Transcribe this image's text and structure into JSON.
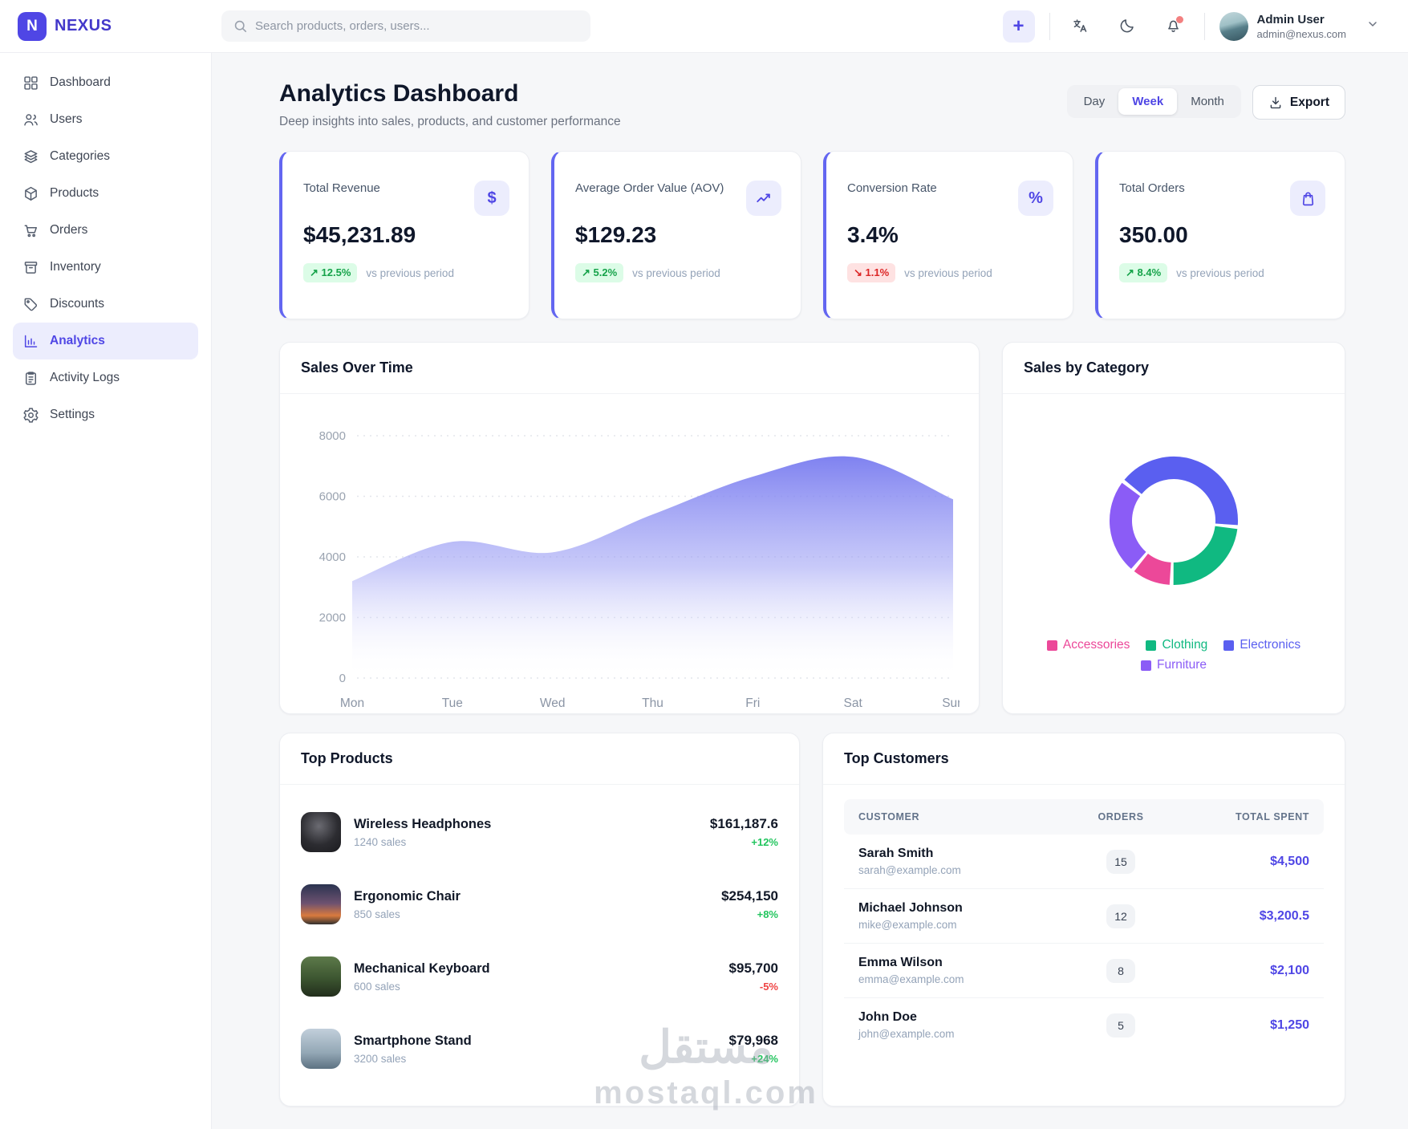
{
  "app": {
    "brand": "NEXUS",
    "logo_letter": "N",
    "accent_color": "#4f46e5"
  },
  "topbar": {
    "search_placeholder": "Search products, orders, users...",
    "add_button_label": "+",
    "user": {
      "name": "Admin User",
      "email": "admin@nexus.com"
    },
    "has_notification_dot": true
  },
  "sidebar": {
    "items": [
      {
        "label": "Dashboard",
        "icon": "dashboard",
        "active": false
      },
      {
        "label": "Users",
        "icon": "users",
        "active": false
      },
      {
        "label": "Categories",
        "icon": "categories",
        "active": false
      },
      {
        "label": "Products",
        "icon": "products",
        "active": false
      },
      {
        "label": "Orders",
        "icon": "orders",
        "active": false
      },
      {
        "label": "Inventory",
        "icon": "inventory",
        "active": false
      },
      {
        "label": "Discounts",
        "icon": "discounts",
        "active": false
      },
      {
        "label": "Analytics",
        "icon": "analytics",
        "active": true
      },
      {
        "label": "Activity Logs",
        "icon": "activity",
        "active": false
      },
      {
        "label": "Settings",
        "icon": "settings",
        "active": false
      }
    ]
  },
  "header": {
    "title": "Analytics Dashboard",
    "subtitle": "Deep insights into sales, products, and customer performance",
    "range_options": [
      "Day",
      "Week",
      "Month"
    ],
    "active_range": "Week",
    "export_label": "Export"
  },
  "stats": [
    {
      "label": "Total Revenue",
      "value": "$45,231.89",
      "change": "12.5%",
      "direction": "up",
      "note": "vs previous period",
      "icon": "dollar"
    },
    {
      "label": "Average Order Value (AOV)",
      "value": "$129.23",
      "change": "5.2%",
      "direction": "up",
      "note": "vs previous period",
      "icon": "trend"
    },
    {
      "label": "Conversion Rate",
      "value": "3.4%",
      "change": "1.1%",
      "direction": "down",
      "note": "vs previous period",
      "icon": "percent"
    },
    {
      "label": "Total Orders",
      "value": "350.00",
      "change": "8.4%",
      "direction": "up",
      "note": "vs previous period",
      "icon": "bag"
    }
  ],
  "chart_data": [
    {
      "type": "area",
      "title": "Sales Over Time",
      "x": [
        "Mon",
        "Tue",
        "Wed",
        "Thu",
        "Fri",
        "Sat",
        "Sun"
      ],
      "values": [
        3200,
        4500,
        4150,
        5400,
        6650,
        7300,
        5900
      ],
      "ylim": [
        0,
        8000
      ],
      "yticks": [
        0,
        2000,
        4000,
        6000,
        8000
      ],
      "grid": "dotted-horizontal",
      "fill_color": "#6d70f0",
      "legend_position": "none"
    },
    {
      "type": "pie",
      "title": "Sales by Category",
      "donut": true,
      "segments": [
        {
          "label": "Accessories",
          "share_pct": 10.5,
          "color": "#ec4899"
        },
        {
          "label": "Clothing",
          "share_pct": 24,
          "color": "#10b981"
        },
        {
          "label": "Electronics",
          "share_pct": 41,
          "color": "#5a5ff0"
        },
        {
          "label": "Furniture",
          "share_pct": 24.5,
          "color": "#8b5cf6"
        }
      ],
      "draw_order": [
        "Electronics",
        "Clothing",
        "Accessories",
        "Furniture"
      ],
      "start_angle_deg": 308,
      "legend_position": "bottom"
    }
  ],
  "products": {
    "title": "Top Products",
    "items": [
      {
        "name": "Wireless Headphones",
        "sales": "1240 sales",
        "value": "$161,187.6",
        "change": "+12%",
        "direction": "up",
        "thumb": "headphones"
      },
      {
        "name": "Ergonomic Chair",
        "sales": "850 sales",
        "value": "$254,150",
        "change": "+8%",
        "direction": "up",
        "thumb": "chair"
      },
      {
        "name": "Mechanical Keyboard",
        "sales": "600 sales",
        "value": "$95,700",
        "change": "-5%",
        "direction": "down",
        "thumb": "keyboard"
      },
      {
        "name": "Smartphone Stand",
        "sales": "3200 sales",
        "value": "$79,968",
        "change": "+24%",
        "direction": "up",
        "thumb": "stand"
      }
    ]
  },
  "customers": {
    "title": "Top Customers",
    "columns": [
      "CUSTOMER",
      "ORDERS",
      "TOTAL SPENT"
    ],
    "rows": [
      {
        "name": "Sarah Smith",
        "email": "sarah@example.com",
        "orders": "15",
        "total": "$4,500"
      },
      {
        "name": "Michael Johnson",
        "email": "mike@example.com",
        "orders": "12",
        "total": "$3,200.5"
      },
      {
        "name": "Emma Wilson",
        "email": "emma@example.com",
        "orders": "8",
        "total": "$2,100"
      },
      {
        "name": "John Doe",
        "email": "john@example.com",
        "orders": "5",
        "total": "$1,250"
      }
    ]
  },
  "watermark": {
    "arabic": "مستقل",
    "latin": "mostaql.com"
  }
}
